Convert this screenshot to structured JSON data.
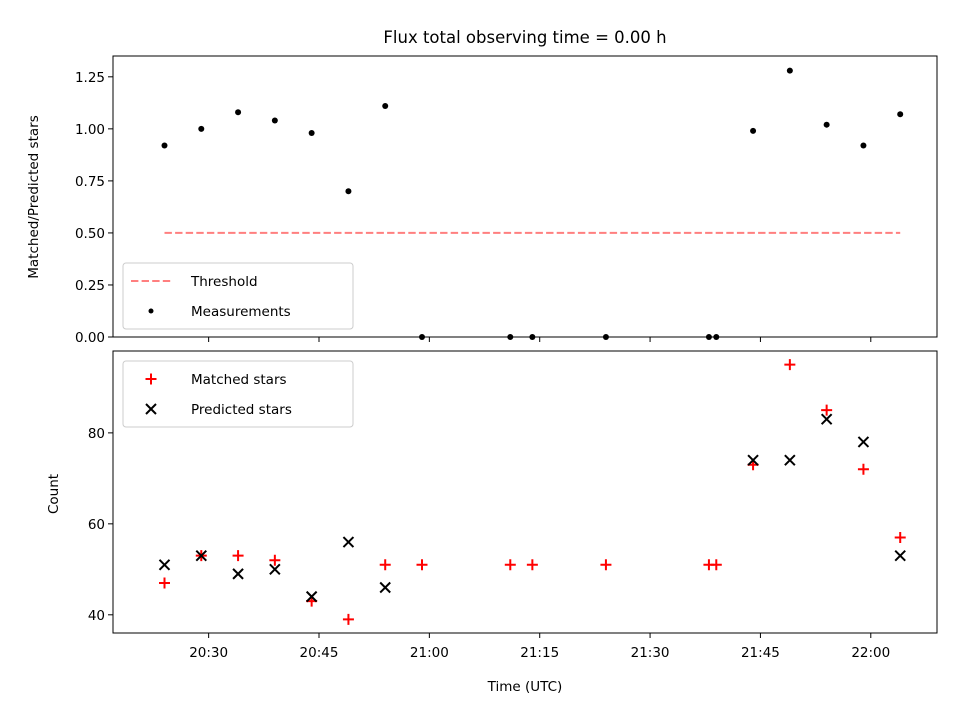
{
  "chart_data": [
    {
      "type": "scatter",
      "title": "Flux total observing time = 0.00 h",
      "xlabel": "",
      "ylabel": "Matched/Predicted stars",
      "ylim": [
        0,
        1.35
      ],
      "yticks": [
        "0.00",
        "0.25",
        "0.50",
        "0.75",
        "1.00",
        "1.25"
      ],
      "xlim": [
        "20:17",
        "22:09"
      ],
      "xticks": [
        "20:30",
        "20:45",
        "21:00",
        "21:15",
        "21:30",
        "21:45",
        "22:00"
      ],
      "legend": {
        "position": "lower-left",
        "entries": [
          "Threshold",
          "Measurements"
        ]
      },
      "series": [
        {
          "name": "Threshold",
          "style": "dashed-line",
          "color": "#ff7f7f",
          "points": [
            [
              "20:24",
              0.5
            ],
            [
              "22:04",
              0.5
            ]
          ]
        },
        {
          "name": "Measurements",
          "style": "dot",
          "color": "#000000",
          "points": [
            [
              "20:24",
              0.92
            ],
            [
              "20:29",
              1.0
            ],
            [
              "20:34",
              1.08
            ],
            [
              "20:39",
              1.04
            ],
            [
              "20:44",
              0.98
            ],
            [
              "20:49",
              0.7
            ],
            [
              "20:54",
              1.11
            ],
            [
              "20:59",
              0.0
            ],
            [
              "21:11",
              0.0
            ],
            [
              "21:14",
              0.0
            ],
            [
              "21:24",
              0.0
            ],
            [
              "21:38",
              0.0
            ],
            [
              "21:39",
              0.0
            ],
            [
              "21:44",
              0.99
            ],
            [
              "21:49",
              1.28
            ],
            [
              "21:54",
              1.02
            ],
            [
              "21:59",
              0.92
            ],
            [
              "22:04",
              1.07
            ]
          ]
        }
      ]
    },
    {
      "type": "scatter",
      "title": "",
      "xlabel": "Time (UTC)",
      "ylabel": "Count",
      "ylim": [
        36,
        98
      ],
      "yticks": [
        "40",
        "60",
        "80"
      ],
      "xlim": [
        "20:17",
        "22:09"
      ],
      "xticks": [
        "20:30",
        "20:45",
        "21:00",
        "21:15",
        "21:30",
        "21:45",
        "22:00"
      ],
      "legend": {
        "position": "upper-left",
        "entries": [
          "Matched stars",
          "Predicted stars"
        ]
      },
      "series": [
        {
          "name": "Matched stars",
          "marker": "plus",
          "color": "#ff0000",
          "points": [
            [
              "20:24",
              47
            ],
            [
              "20:29",
              53
            ],
            [
              "20:34",
              53
            ],
            [
              "20:39",
              52
            ],
            [
              "20:44",
              43
            ],
            [
              "20:49",
              39
            ],
            [
              "20:54",
              51
            ],
            [
              "20:59",
              51
            ],
            [
              "21:11",
              51
            ],
            [
              "21:14",
              51
            ],
            [
              "21:24",
              51
            ],
            [
              "21:38",
              51
            ],
            [
              "21:39",
              51
            ],
            [
              "21:44",
              73
            ],
            [
              "21:49",
              95
            ],
            [
              "21:54",
              85
            ],
            [
              "21:59",
              72
            ],
            [
              "22:04",
              57
            ]
          ]
        },
        {
          "name": "Predicted stars",
          "marker": "x",
          "color": "#000000",
          "points": [
            [
              "20:24",
              51
            ],
            [
              "20:29",
              53
            ],
            [
              "20:34",
              49
            ],
            [
              "20:39",
              50
            ],
            [
              "20:44",
              44
            ],
            [
              "20:49",
              56
            ],
            [
              "20:54",
              46
            ],
            [
              "21:44",
              74
            ],
            [
              "21:49",
              74
            ],
            [
              "21:54",
              83
            ],
            [
              "21:59",
              78
            ],
            [
              "22:04",
              53
            ]
          ]
        }
      ]
    }
  ]
}
